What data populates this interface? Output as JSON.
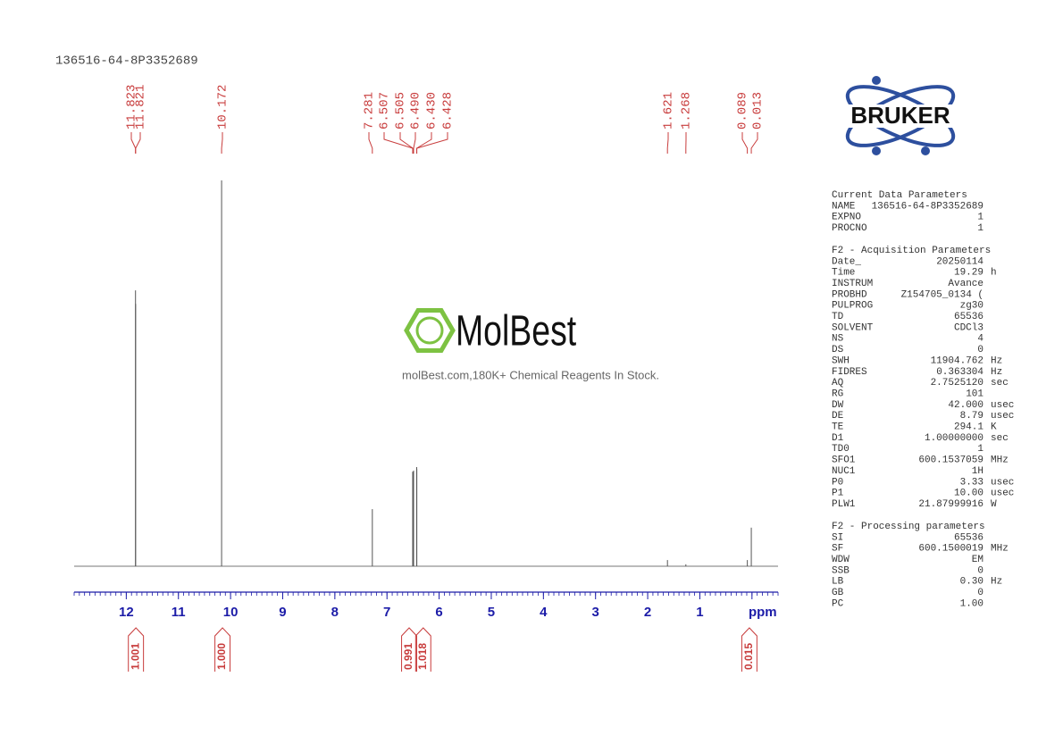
{
  "chart_data": {
    "type": "nmr",
    "title": "136516-64-8P3352689",
    "xlim": [
      13.0,
      -0.5
    ],
    "xticks": [
      12,
      11,
      10,
      9,
      8,
      7,
      6,
      5,
      4,
      3,
      2,
      1,
      {
        "value": 0,
        "label": "ppm"
      }
    ],
    "minor_tick_step": 0.1,
    "ylim": [
      0,
      100
    ],
    "axis_color": "#1c1ca8",
    "spectrum_color": "#555555",
    "label_color": "#c83c3c",
    "peaks": {
      "x": [
        11.823,
        11.821,
        10.172,
        7.281,
        6.507,
        6.505,
        6.49,
        6.43,
        6.428,
        1.621,
        1.268,
        0.089,
        0.013
      ],
      "x_labels": [
        "11.823",
        "11.821",
        "10.172",
        "7.281",
        "6.507",
        "6.505",
        "6.490",
        "6.430",
        "6.428",
        "1.621",
        "1.268",
        "0.089",
        "0.013"
      ],
      "values": [
        71.5,
        68,
        100,
        14.8,
        24.5,
        24.3,
        24.8,
        25.7,
        25.2,
        1.6,
        0.5,
        1.6,
        10.0
      ]
    },
    "integrals": {
      "ranges": [
        [
          11.96,
          11.67
        ],
        [
          10.3,
          10.01
        ],
        [
          6.72,
          6.43
        ],
        [
          6.45,
          6.16
        ],
        [
          0.195,
          -0.095
        ]
      ],
      "values": [
        1.001,
        1.0,
        0.991,
        1.018,
        0.015
      ],
      "value_labels": [
        "1.001",
        "1.000",
        "0.991",
        "1.018",
        "0.015"
      ]
    }
  },
  "logo": {
    "brand": "BRUKER"
  },
  "watermark": {
    "brand": "MolBest",
    "tagline": "molBest.com,180K+ Chemical Reagents In Stock."
  },
  "parameters": [
    {
      "title": "Current Data Parameters",
      "rows": [
        [
          "NAME",
          "136516-64-8P3352689"
        ],
        [
          "EXPNO",
          "1"
        ],
        [
          "PROCNO",
          "1"
        ]
      ]
    },
    {
      "title": "F2 - Acquisition Parameters",
      "rows": [
        [
          "Date_",
          "20250114"
        ],
        [
          "Time",
          "19.29",
          "h"
        ],
        [
          "INSTRUM",
          "Avance"
        ],
        [
          "PROBHD",
          "Z154705_0134 ("
        ],
        [
          "PULPROG",
          "zg30"
        ],
        [
          "TD",
          "65536"
        ],
        [
          "SOLVENT",
          "CDCl3"
        ],
        [
          "NS",
          "4"
        ],
        [
          "DS",
          "0"
        ],
        [
          "SWH",
          "11904.762",
          "Hz"
        ],
        [
          "FIDRES",
          "0.363304",
          "Hz"
        ],
        [
          "AQ",
          "2.7525120",
          "sec"
        ],
        [
          "RG",
          "101"
        ],
        [
          "DW",
          "42.000",
          "usec"
        ],
        [
          "DE",
          "8.79",
          "usec"
        ],
        [
          "TE",
          "294.1",
          "K"
        ],
        [
          "D1",
          "1.00000000",
          "sec"
        ],
        [
          "TD0",
          "1"
        ],
        [
          "SFO1",
          "600.1537059",
          "MHz"
        ],
        [
          "NUC1",
          "1H"
        ],
        [
          "P0",
          "3.33",
          "usec"
        ],
        [
          "P1",
          "10.00",
          "usec"
        ],
        [
          "PLW1",
          "21.87999916",
          "W"
        ]
      ]
    },
    {
      "title": "F2 - Processing parameters",
      "rows": [
        [
          "SI",
          "65536"
        ],
        [
          "SF",
          "600.1500019",
          "MHz"
        ],
        [
          "WDW",
          "EM"
        ],
        [
          "SSB",
          "0"
        ],
        [
          "LB",
          "0.30",
          "Hz"
        ],
        [
          "GB",
          "0"
        ],
        [
          "PC",
          "1.00"
        ]
      ]
    }
  ]
}
